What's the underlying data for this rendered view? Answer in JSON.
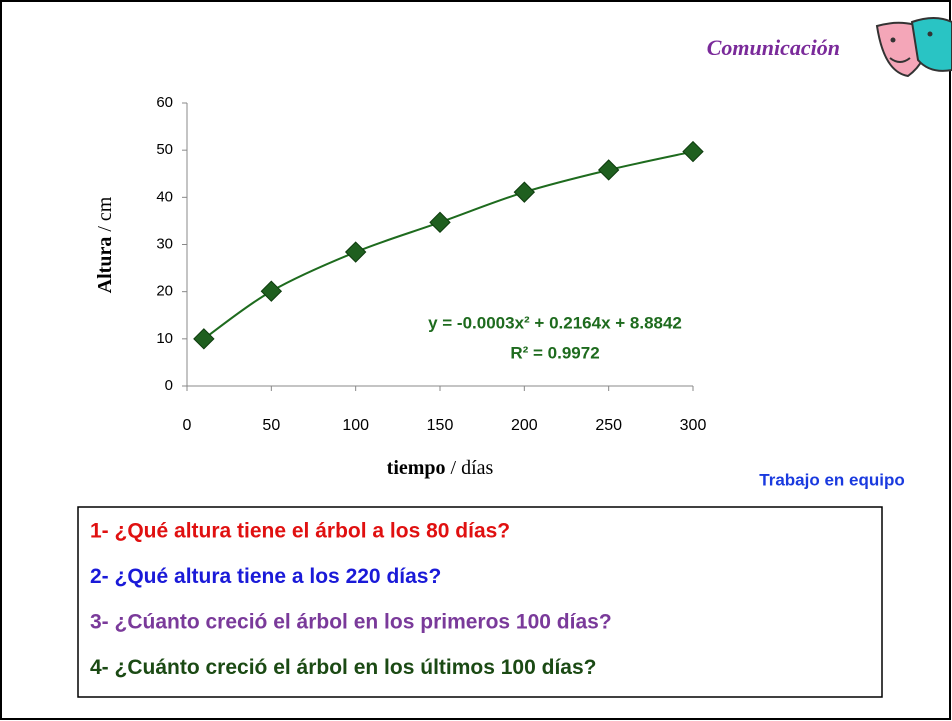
{
  "header": {
    "section": "Comunicación"
  },
  "chart_data": {
    "type": "scatter",
    "x": [
      10,
      50,
      100,
      150,
      200,
      250,
      300
    ],
    "values": [
      10,
      20.1,
      28.4,
      34.7,
      41.1,
      45.8,
      49.7
    ],
    "color": "#1f5f1f",
    "xlim": [
      0,
      300
    ],
    "xticks": [
      0,
      50,
      100,
      150,
      200,
      250,
      300
    ],
    "ylim": [
      0,
      60
    ],
    "yticks": [
      0,
      10,
      20,
      30,
      40,
      50,
      60
    ],
    "x_label": {
      "bold": "tiempo",
      "rest": "/ días"
    },
    "y_label": {
      "bold": "Altura",
      "rest": "/ cm"
    },
    "trendline": {
      "equation": "y = -0.0003x² + 0.2164x + 8.8842",
      "r2": "R² = 0.9972",
      "color": "#1e6b1e"
    }
  },
  "team_label": "Trabajo en equipo",
  "questions": [
    {
      "text": "1- ¿Qué altura tiene el árbol a los 80 días?",
      "color": "#e01010"
    },
    {
      "text": "2- ¿Qué altura tiene a los 220 días?",
      "color": "#1a1ad8"
    },
    {
      "text": "3- ¿Cúanto creció el árbol en los primeros 100 días?",
      "color": "#7a3a9a"
    },
    {
      "text": "4- ¿Cuánto creció el árbol en los últimos 100 días?",
      "color": "#1b4a14"
    }
  ]
}
